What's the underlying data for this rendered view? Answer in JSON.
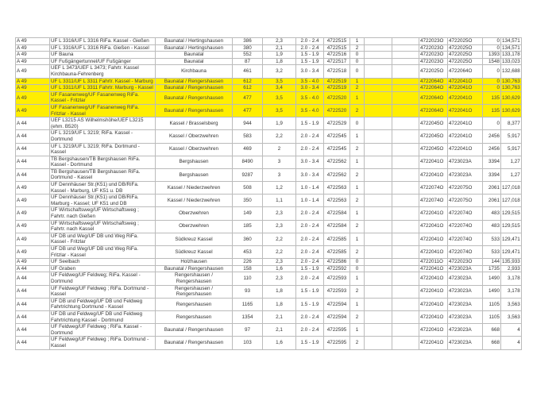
{
  "table": {
    "highlight_color": "#ffee00",
    "rows": [
      [
        "A 49",
        "UF L 3316/UF L 3316 RiFa. Kassel - Gießen",
        "Baunatal / Hertingshausen",
        "386",
        "2,3",
        "2.0  -  2.4",
        "4722515",
        "1",
        "",
        "",
        "4722023O",
        "4722025O",
        "0",
        "134,571"
      ],
      [
        "A 49",
        "UF L 3316/UF L 3316 RiFa. Gießen - Kassel",
        "Baunatal / Hertingshausen",
        "380",
        "2,1",
        "2.0  -  2.4",
        "4722515",
        "2",
        "",
        "",
        "4722023O",
        "4722025O",
        "0",
        "134,571"
      ],
      [
        "A 49",
        "UF Bauna",
        "Baunatal",
        "552",
        "1,9",
        "1.5  -  1.9",
        "4722516",
        "0",
        "",
        "",
        "4722023O",
        "4722025O",
        "1393",
        "133,178"
      ],
      [
        "A 49",
        "UF Fußgängertunnel/UF Fußgänger",
        "Baunatal",
        "87",
        "1,8",
        "1.5  -  1.9",
        "4722517",
        "0",
        "",
        "",
        "4722023O",
        "4722025O",
        "1548",
        "133,023"
      ],
      [
        "A 49",
        "UEF  L 3473/UEF  L 3473; Fahrtr. Kassel Kirchbauna-Fehrenberg",
        "Kirchbauna",
        "461",
        "3,2",
        "3.0  -  3.4",
        "4722518",
        "0",
        "",
        "",
        "4722025O",
        "4722064O",
        "0",
        "132,688"
      ],
      [
        "A 49",
        "UF L 3311/UF L 3311 Fahrtr. Kassel - Marburg",
        "Baunatal / Rengershausen",
        "612",
        "3,5",
        "3.5  -  4.0",
        "4722519",
        "1",
        "",
        "",
        "4722064O",
        "4722041O",
        "0",
        "130,763"
      ],
      [
        "A 49",
        "UF L 3311/UF L 3311 Fahrtr. Marburg - Kassel",
        "Baunatal / Rengershausen",
        "612",
        "3,4",
        "3.0  -  3.4",
        "4722519",
        "2",
        "",
        "",
        "4722064O",
        "4722041O",
        "0",
        "130,763"
      ],
      [
        "A 49",
        "UF Fasanenweg/UF Fasanenweg RiFa. Kassel - Fritzlar",
        "Baunatal / Rengershausen",
        "477",
        "3,5",
        "3.5  -  4.0",
        "4722520",
        "1",
        "",
        "",
        "4722064O",
        "4722041O",
        "135",
        "130,629"
      ],
      [
        "A 49",
        "UF Fasanenweg/UF Fasanenweg RiFa. Fritzlar - Kassel",
        "Baunatal / Rengershausen",
        "477",
        "3,5",
        "3.5  -  4.0",
        "4722520",
        "2",
        "",
        "",
        "4722064O",
        "4722041O",
        "135",
        "130,629"
      ],
      [
        "A 44",
        "UEF L3215 AS Wilhelmshöhe/UEF L3215 (ehm. B520)",
        "Kassel / Brasselsberg",
        "944",
        "1,9",
        "1.5  -  1.9",
        "4722529",
        "0",
        "",
        "",
        "4722045O",
        "4722041O",
        "0",
        "8,377"
      ],
      [
        "A 44",
        "UF L 3219/UF L 3219; RiFa. Kassel - Dortmund",
        "Kassel / Oberzwehren",
        "583",
        "2,2",
        "2.0  -  2.4",
        "4722545",
        "1",
        "",
        "",
        "4722045O",
        "4722041O",
        "2456",
        "5,917"
      ],
      [
        "A 44",
        "UF L 3219/UF L 3219; RiFa. Dortmund - Kassel",
        "Kassel / Oberzwehren",
        "469",
        "2",
        "2.0  -  2.4",
        "4722545",
        "2",
        "",
        "",
        "4722045O",
        "4722041O",
        "2456",
        "5,917"
      ],
      [
        "A 44",
        "TB Bergshausen/TB Bergshausen RiFa. Kassel - Dortmund",
        "Bergshausen",
        "8490",
        "3",
        "3.0  -  3.4",
        "4722562",
        "1",
        "",
        "",
        "4722041O",
        "4723023A",
        "3394",
        "1,27"
      ],
      [
        "A 44",
        "TB Bergshausen/TB Bergshausen RiFa. Dortmund - Kassel",
        "Bergshausen",
        "9287",
        "3",
        "3.0  -  3.4",
        "4722562",
        "2",
        "",
        "",
        "4722041O",
        "4723023A",
        "3394",
        "1,27"
      ],
      [
        "A 49",
        "UF Dennhäuser Str.(K51) und DB/RiFa. Kassel - Marburg, UF K51 u. DB",
        "Kassel / Niederzwehren",
        "508",
        "1,2",
        "1.0  -  1.4",
        "4722563",
        "1",
        "",
        "",
        "4722074O",
        "4722075O",
        "2061",
        "127,018"
      ],
      [
        "A 49",
        "UF Dennhäuser Str.(K51) und DB/RiFa. Marburg - Kassel; UF K51 und DB",
        "Kassel / Niederzwehren",
        "350",
        "1,1",
        "1.0  -  1.4",
        "4722563",
        "2",
        "",
        "",
        "4722074O",
        "4722075O",
        "2061",
        "127,018"
      ],
      [
        "A 49",
        "UF Wirtschaftsweg/UF Wirtschaftsweg ; Fahrtr. nach Gießen",
        "Oberzwehren",
        "149",
        "2,3",
        "2.0  -  2.4",
        "4722584",
        "1",
        "",
        "",
        "4722041O",
        "4722074O",
        "483",
        "129,515"
      ],
      [
        "A 49",
        "UF Wirtschaftsweg/UF Wirtschaftsweg ; Fahrtr. nach Kassel",
        "Oberzwehren",
        "185",
        "2,3",
        "2.0  -  2.4",
        "4722584",
        "2",
        "",
        "",
        "4722041O",
        "4722074O",
        "483",
        "129,515"
      ],
      [
        "A 49",
        "UF DB und Weg/UF DB und Weg RiFa. Kassel - Fritzlar",
        "Südkreuz Kassel",
        "360",
        "2,2",
        "2.0  -  2.4",
        "4722585",
        "1",
        "",
        "",
        "4722041O",
        "4722074O",
        "533",
        "129,471"
      ],
      [
        "A 49",
        "UF DB und Weg/UF DB und Weg RiFa. Fritzlar - Kassel",
        "Südkreuz Kassel",
        "453",
        "2,2",
        "2.0  -  2.4",
        "4722585",
        "2",
        "",
        "",
        "4722041O",
        "4722074O",
        "533",
        "129,471"
      ],
      [
        "A 49",
        "UF Seelbach",
        "Holzhausen",
        "226",
        "2,3",
        "2.0  -  2.4",
        "4722586",
        "0",
        "",
        "",
        "4722011O",
        "4722023O",
        "144",
        "135,933"
      ],
      [
        "A 44",
        "UF Graben",
        "Baunatal / Rengershausen",
        "158",
        "1,6",
        "1.5  -  1.9",
        "4722592",
        "0",
        "",
        "",
        "4722041O",
        "4723023A",
        "1735",
        "2,933"
      ],
      [
        "A 44",
        "UF Feldweg/UF Feldweg; RiFa. Kassel - Dortmund",
        "Rengershausen / Rengershausen",
        "110",
        "2,3",
        "2.0  -  2.4",
        "4722593",
        "1",
        "",
        "",
        "4722041O",
        "4723023A",
        "1490",
        "3,178"
      ],
      [
        "A 44",
        "UF Feldweg/UF Feldweg ; RiFa. Dortmund - Kassel",
        "Rengershausen / Rengershausen",
        "93",
        "1,8",
        "1.5  -  1.9",
        "4722593",
        "2",
        "",
        "",
        "4722041O",
        "4723023A",
        "1490",
        "3,178"
      ],
      [
        "A 44",
        "UF DB und Feldweg/UF DB und Feldweg Fahrtrichtung Dortmund - Kassel",
        "Rengershausen",
        "1165",
        "1,8",
        "1.5  -  1.9",
        "4722594",
        "1",
        "",
        "",
        "4722041O",
        "4723023A",
        "1105",
        "3,563"
      ],
      [
        "A 44",
        "UF DB und Feldweg/UF DB und Feldweg Fahrtrichtung Kassel - Dortmund",
        "Rengershausen",
        "1354",
        "2,1",
        "2.0  -  2.4",
        "4722594",
        "2",
        "",
        "",
        "4722041O",
        "4723023A",
        "1105",
        "3,563"
      ],
      [
        "A 44",
        "UF Feldweg/UF Feldweg ; RiFa. Kassel - Dortmund",
        "Baunatal / Rengershausen",
        "97",
        "2,1",
        "2.0  -  2.4",
        "4722595",
        "1",
        "",
        "",
        "4722041O",
        "4723023A",
        "668",
        "4"
      ],
      [
        "A 44",
        "UF Feldweg/UF Feldweg ; RiFa. Dortmund - Kassel",
        "Baunatal / Rengershausen",
        "103",
        "1,6",
        "1.5  -  1.9",
        "4722595",
        "2",
        "",
        "",
        "4722041O",
        "4723023A",
        "668",
        "4"
      ]
    ],
    "highlighted_rows": [
      5,
      6,
      7,
      8
    ],
    "double_rows": [
      4,
      7,
      8,
      9,
      12,
      13,
      14,
      15,
      16,
      17,
      18,
      19,
      22,
      23,
      24,
      25,
      26,
      27
    ]
  }
}
